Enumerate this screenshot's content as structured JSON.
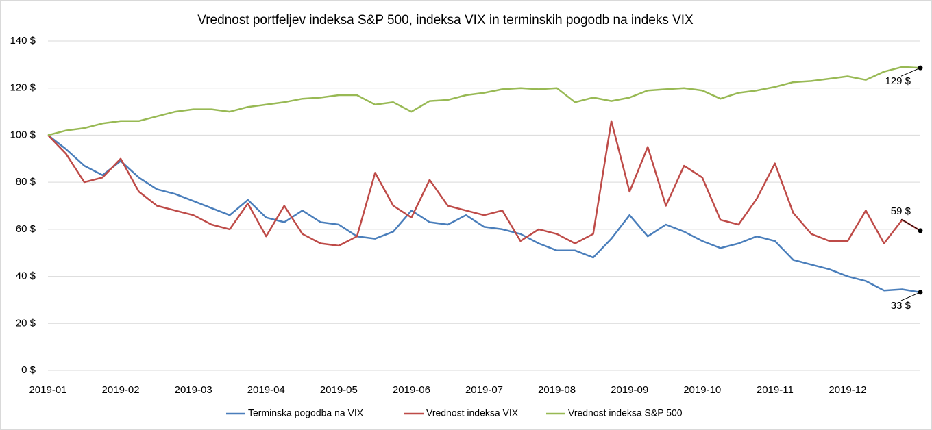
{
  "chart_data": {
    "type": "line",
    "title": "Vrednost portfeljev indeksa S&P 500, indeksa VIX in terminskih pogodb na indeks VIX",
    "categories": [
      "2019-01",
      null,
      null,
      null,
      "2019-02",
      null,
      null,
      null,
      "2019-03",
      null,
      null,
      null,
      "2019-04",
      null,
      null,
      null,
      "2019-05",
      null,
      null,
      null,
      "2019-06",
      null,
      null,
      null,
      "2019-07",
      null,
      null,
      null,
      "2019-08",
      null,
      null,
      null,
      "2019-09",
      null,
      null,
      null,
      "2019-10",
      null,
      null,
      null,
      "2019-11",
      null,
      null,
      null,
      "2019-12",
      null,
      null,
      null,
      null
    ],
    "ylim": [
      0,
      140
    ],
    "yticks": [
      {
        "value": 0,
        "label": "0 $"
      },
      {
        "value": 20,
        "label": "20 $"
      },
      {
        "value": 40,
        "label": "40 $"
      },
      {
        "value": 60,
        "label": "60 $"
      },
      {
        "value": 80,
        "label": "80 $"
      },
      {
        "value": 100,
        "label": "100 $"
      },
      {
        "value": 120,
        "label": "120 $"
      },
      {
        "value": 140,
        "label": "140 $"
      }
    ],
    "grid": true,
    "legend": "bottom",
    "series": [
      {
        "name": "Terminska pogodba na VIX",
        "color": "#4a7ebb",
        "values": [
          100,
          94,
          87,
          83,
          89,
          82,
          77,
          75,
          72,
          69,
          66,
          72.5,
          65,
          63,
          68,
          63,
          62,
          57,
          56,
          59,
          68,
          63,
          62,
          66,
          61,
          60,
          58,
          54,
          51,
          51,
          48,
          56,
          66,
          57,
          62,
          59,
          55,
          52,
          54,
          57,
          55,
          47,
          45,
          43,
          40,
          38,
          34,
          34.5,
          33.2
        ],
        "value_labels": [
          null,
          null,
          null,
          null,
          null,
          null,
          null,
          null,
          null,
          null,
          null,
          null,
          null,
          null,
          null,
          null,
          null,
          null,
          null,
          null,
          null,
          null,
          null,
          null,
          null,
          null,
          null,
          null,
          null,
          null,
          null,
          null,
          null,
          null,
          null,
          null,
          null,
          null,
          null,
          null,
          null,
          null,
          null,
          null,
          null,
          null,
          null,
          null,
          "33 $"
        ]
      },
      {
        "name": "Vrednost indeksa VIX",
        "color": "#be4b48",
        "values": [
          100,
          92,
          80,
          82,
          90,
          76,
          70,
          68,
          66,
          62,
          60,
          71,
          57,
          70,
          58,
          54,
          53,
          57,
          84,
          70,
          65,
          81,
          70,
          68,
          66,
          68,
          55,
          60,
          58,
          54,
          58,
          106,
          76,
          95,
          70,
          87,
          82,
          64,
          62,
          73,
          88,
          67,
          58,
          55,
          55,
          68,
          54,
          64,
          59.4
        ],
        "value_labels": [
          null,
          null,
          null,
          null,
          null,
          null,
          null,
          null,
          null,
          null,
          null,
          null,
          null,
          null,
          null,
          null,
          null,
          null,
          null,
          null,
          null,
          null,
          null,
          null,
          null,
          null,
          null,
          null,
          null,
          null,
          null,
          null,
          null,
          null,
          null,
          null,
          null,
          null,
          null,
          null,
          null,
          null,
          null,
          null,
          null,
          null,
          null,
          null,
          "59 $"
        ]
      },
      {
        "name": "Vrednost indeksa S&P 500",
        "color": "#98b954",
        "values": [
          100,
          102,
          103,
          105,
          106,
          106,
          108,
          110,
          111,
          111,
          110,
          112,
          113,
          114,
          115.5,
          116,
          117,
          117,
          113,
          114,
          110,
          114.5,
          115,
          117,
          118,
          119.5,
          120,
          119.5,
          120,
          114,
          116,
          114.5,
          116,
          119,
          119.5,
          120,
          119,
          115.5,
          118,
          119,
          120.5,
          122.5,
          123,
          124,
          125,
          123.5,
          127,
          129,
          128.6
        ],
        "value_labels": [
          null,
          null,
          null,
          null,
          null,
          null,
          null,
          null,
          null,
          null,
          null,
          null,
          null,
          null,
          null,
          null,
          null,
          null,
          null,
          null,
          null,
          null,
          null,
          null,
          null,
          null,
          null,
          null,
          null,
          null,
          null,
          null,
          null,
          null,
          null,
          null,
          null,
          null,
          null,
          null,
          null,
          null,
          null,
          null,
          null,
          null,
          null,
          null,
          "129 $"
        ]
      }
    ]
  }
}
